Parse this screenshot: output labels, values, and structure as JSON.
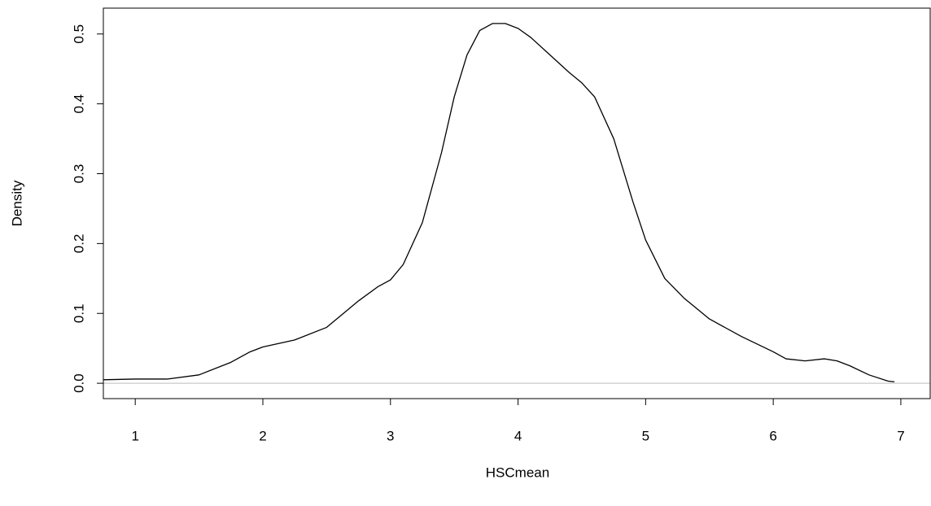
{
  "chart_data": {
    "type": "line",
    "xlabel": "HSCmean",
    "ylabel": "Density",
    "x": [
      0.75,
      1.0,
      1.25,
      1.5,
      1.75,
      1.9,
      2.0,
      2.25,
      2.5,
      2.75,
      2.9,
      3.0,
      3.1,
      3.25,
      3.4,
      3.5,
      3.6,
      3.7,
      3.8,
      3.9,
      4.0,
      4.1,
      4.25,
      4.4,
      4.5,
      4.6,
      4.75,
      4.9,
      5.0,
      5.15,
      5.3,
      5.5,
      5.75,
      6.0,
      6.1,
      6.25,
      6.4,
      6.5,
      6.6,
      6.75,
      6.9,
      6.95
    ],
    "y": [
      0.005,
      0.006,
      0.006,
      0.012,
      0.03,
      0.045,
      0.052,
      0.062,
      0.08,
      0.118,
      0.138,
      0.148,
      0.17,
      0.23,
      0.33,
      0.41,
      0.47,
      0.505,
      0.515,
      0.515,
      0.508,
      0.495,
      0.47,
      0.445,
      0.43,
      0.41,
      0.35,
      0.26,
      0.205,
      0.15,
      0.122,
      0.092,
      0.067,
      0.045,
      0.035,
      0.032,
      0.035,
      0.032,
      0.025,
      0.012,
      0.003,
      0.002
    ],
    "color": "#000000",
    "zero_line_color": "#bebebe",
    "xlim": [
      0.75,
      7.23
    ],
    "ylim": [
      -0.022,
      0.537
    ],
    "xticks": [
      1,
      2,
      3,
      4,
      5,
      6,
      7
    ],
    "yticks": [
      {
        "value": 0,
        "label": "0.0"
      },
      0.1,
      0.2,
      0.3,
      0.4,
      0.5
    ]
  }
}
